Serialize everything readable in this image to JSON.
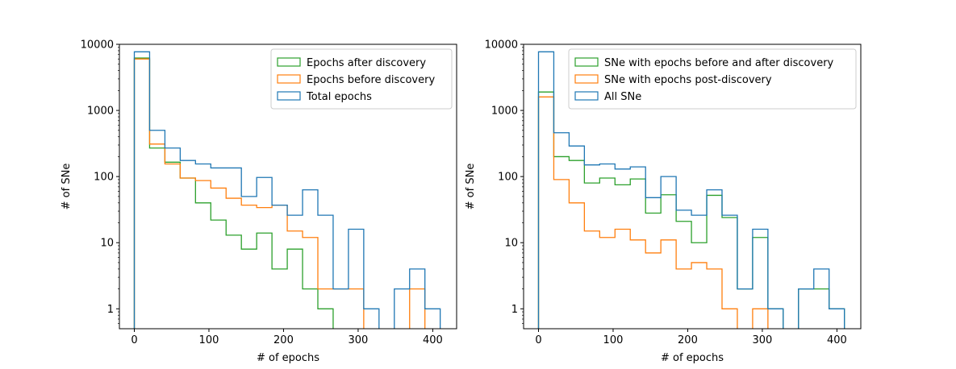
{
  "chart_data": [
    {
      "type": "histogram",
      "xlabel": "# of epochs",
      "ylabel": "# of SNe",
      "yscale": "log",
      "xlim": [
        -20,
        432
      ],
      "ylim": [
        0.5,
        10000
      ],
      "xticks": [
        0,
        100,
        200,
        300,
        400
      ],
      "xtick_labels": [
        "0",
        "100",
        "200",
        "300",
        "400"
      ],
      "yticks": [
        1,
        10,
        100,
        1000,
        10000
      ],
      "ytick_labels": [
        "1",
        "10",
        "100",
        "1000",
        "10000"
      ],
      "bin_edges": [
        0,
        20.5,
        41,
        61.5,
        82,
        102.5,
        123,
        143.5,
        164,
        184.5,
        205,
        225.5,
        246,
        266.5,
        287,
        307.5,
        328,
        348.5,
        369,
        389.5,
        410
      ],
      "legend_position": "upper right",
      "series": [
        {
          "name": "Epochs after discovery",
          "color": "#2ca02c",
          "counts": [
            6200,
            270,
            165,
            95,
            40,
            22,
            13,
            8,
            14,
            4,
            8,
            2,
            1,
            0,
            0,
            0,
            0,
            0,
            0,
            0
          ]
        },
        {
          "name": "Epochs before discovery",
          "color": "#ff7f0e",
          "counts": [
            6000,
            310,
            155,
            95,
            87,
            67,
            47,
            37,
            34,
            37,
            15,
            12,
            2,
            2,
            2,
            0,
            0,
            0,
            2,
            0
          ]
        },
        {
          "name": "Total epochs",
          "color": "#1f77b4",
          "counts": [
            7700,
            500,
            270,
            175,
            155,
            135,
            135,
            50,
            97,
            37,
            26,
            63,
            26,
            2,
            16,
            1,
            0,
            2,
            4,
            1
          ]
        }
      ]
    },
    {
      "type": "histogram",
      "xlabel": "# of epochs",
      "ylabel": "# of SNe",
      "yscale": "log",
      "xlim": [
        -20,
        432
      ],
      "ylim": [
        0.5,
        10000
      ],
      "xticks": [
        0,
        100,
        200,
        300,
        400
      ],
      "xtick_labels": [
        "0",
        "100",
        "200",
        "300",
        "400"
      ],
      "yticks": [
        1,
        10,
        100,
        1000,
        10000
      ],
      "ytick_labels": [
        "1",
        "10",
        "100",
        "1000",
        "10000"
      ],
      "bin_edges": [
        0,
        20.5,
        41,
        61.5,
        82,
        102.5,
        123,
        143.5,
        164,
        184.5,
        205,
        225.5,
        246,
        266.5,
        287,
        307.5,
        328,
        348.5,
        369,
        389.5,
        410
      ],
      "legend_position": "upper right",
      "series": [
        {
          "name": "SNe with epochs before and after discovery",
          "color": "#2ca02c",
          "counts": [
            1900,
            200,
            175,
            80,
            95,
            75,
            92,
            28,
            53,
            21,
            10,
            52,
            24,
            2,
            12,
            1,
            0,
            2,
            2,
            1
          ]
        },
        {
          "name": "SNe with epochs post-discovery",
          "color": "#ff7f0e",
          "counts": [
            1600,
            90,
            40,
            15,
            12,
            16,
            11,
            7,
            11,
            4,
            5,
            4,
            1,
            0,
            1,
            0,
            0,
            0,
            0,
            0
          ]
        },
        {
          "name": "All SNe",
          "color": "#1f77b4",
          "counts": [
            7700,
            460,
            290,
            150,
            155,
            130,
            140,
            48,
            100,
            31,
            26,
            63,
            26,
            2,
            16,
            1,
            0,
            2,
            4,
            1
          ]
        }
      ]
    }
  ]
}
